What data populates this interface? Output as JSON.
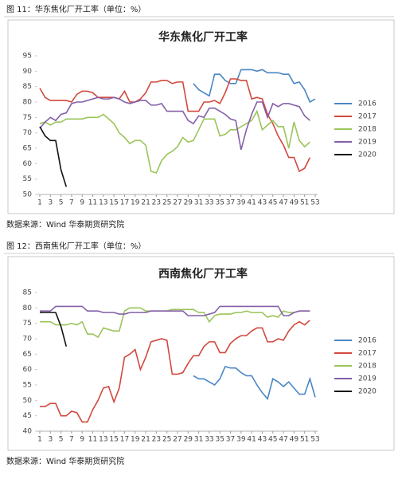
{
  "chart_data": [
    {
      "type": "line",
      "caption": "图 11：华东焦化厂开工率（单位：%）",
      "title": "华东焦化厂开工率",
      "source": "数据来源：Wind 华泰期货研究院",
      "x": [
        1,
        2,
        3,
        4,
        5,
        6,
        7,
        8,
        9,
        10,
        11,
        12,
        13,
        14,
        15,
        16,
        17,
        18,
        19,
        20,
        21,
        22,
        23,
        24,
        25,
        26,
        27,
        28,
        29,
        30,
        31,
        32,
        33,
        34,
        35,
        36,
        37,
        38,
        39,
        40,
        41,
        42,
        43,
        44,
        45,
        46,
        47,
        48,
        49,
        50,
        51,
        52,
        53
      ],
      "xlim": [
        1,
        53
      ],
      "xticks": [
        1,
        3,
        5,
        7,
        9,
        11,
        13,
        15,
        17,
        19,
        21,
        23,
        25,
        27,
        29,
        31,
        33,
        35,
        37,
        39,
        41,
        43,
        45,
        47,
        49,
        51,
        53
      ],
      "ylim": [
        50,
        95
      ],
      "yticks": [
        50,
        55,
        60,
        65,
        70,
        75,
        80,
        85,
        90,
        95
      ],
      "legend": "right",
      "series": [
        {
          "name": "2016",
          "color": "#4a86c5",
          "values": [
            null,
            null,
            null,
            null,
            null,
            null,
            null,
            null,
            null,
            null,
            null,
            null,
            null,
            null,
            null,
            null,
            null,
            null,
            null,
            null,
            null,
            null,
            null,
            null,
            null,
            null,
            null,
            null,
            null,
            86,
            84,
            83,
            82,
            89,
            89,
            87,
            86,
            86,
            90.5,
            90.5,
            90.5,
            90,
            90.5,
            89.5,
            89.5,
            89.5,
            89,
            89,
            86,
            86.5,
            84,
            80,
            81
          ]
        },
        {
          "name": "2017",
          "color": "#d2483e",
          "values": [
            84.5,
            81.5,
            80.5,
            80.5,
            80.5,
            80.5,
            80,
            82.5,
            83.5,
            83.5,
            83,
            81.5,
            81.5,
            81.5,
            81.5,
            81,
            83.5,
            80,
            80,
            81,
            83,
            86.5,
            86.5,
            87,
            87,
            86,
            86.5,
            86.5,
            77,
            77,
            77,
            80,
            80,
            80.5,
            79.5,
            83,
            87.5,
            87.5,
            87,
            87,
            81,
            81.5,
            81,
            76,
            73,
            69,
            66,
            62,
            62,
            57.5,
            58.5,
            62,
            null
          ]
        },
        {
          "name": "2018",
          "color": "#9bc45a",
          "values": [
            73,
            73.5,
            72.5,
            73.5,
            73.5,
            74.5,
            74.5,
            74.5,
            74.5,
            75,
            75,
            75,
            76,
            74.5,
            73,
            70,
            68.5,
            66.5,
            67.5,
            67.5,
            66,
            57.5,
            57,
            61,
            63,
            64,
            65.5,
            68.5,
            67,
            67.5,
            71,
            74.5,
            74.5,
            74.5,
            69,
            69.5,
            71,
            71,
            72,
            73,
            74,
            77,
            71,
            72.5,
            74,
            72,
            72,
            65,
            73.5,
            67.5,
            65.5,
            67,
            null
          ]
        },
        {
          "name": "2019",
          "color": "#8460a8",
          "values": [
            71.5,
            73.5,
            75,
            74,
            76,
            76.5,
            79.5,
            80,
            80,
            80.5,
            81,
            81.5,
            81,
            81,
            81.5,
            81,
            80,
            79.5,
            80,
            80.5,
            80.5,
            79,
            79,
            79.5,
            77,
            77,
            77,
            77,
            74,
            73,
            75.5,
            75,
            78,
            78,
            77,
            76,
            74.5,
            74,
            64.5,
            71,
            76,
            80,
            80,
            75,
            79.5,
            78.5,
            79.5,
            79.5,
            79,
            78.5,
            75.5,
            74,
            null
          ]
        },
        {
          "name": "2020",
          "color": "#111111",
          "values": [
            72,
            69,
            67.5,
            67.5,
            58,
            52.5,
            null,
            null,
            null,
            null,
            null,
            null,
            null,
            null,
            null,
            null,
            null,
            null,
            null,
            null,
            null,
            null,
            null,
            null,
            null,
            null,
            null,
            null,
            null,
            null,
            null,
            null,
            null,
            null,
            null,
            null,
            null,
            null,
            null,
            null,
            null,
            null,
            null,
            null,
            null,
            null,
            null,
            null,
            null,
            null,
            null,
            null,
            null
          ]
        }
      ]
    },
    {
      "type": "line",
      "caption": "图 12：西南焦化厂开工率（单位：%）",
      "title": "西南焦化厂开工率",
      "source": "数据来源：Wind 华泰期货研究院",
      "x": [
        1,
        2,
        3,
        4,
        5,
        6,
        7,
        8,
        9,
        10,
        11,
        12,
        13,
        14,
        15,
        16,
        17,
        18,
        19,
        20,
        21,
        22,
        23,
        24,
        25,
        26,
        27,
        28,
        29,
        30,
        31,
        32,
        33,
        34,
        35,
        36,
        37,
        38,
        39,
        40,
        41,
        42,
        43,
        44,
        45,
        46,
        47,
        48,
        49,
        50,
        51,
        52,
        53
      ],
      "xlim": [
        1,
        53
      ],
      "xticks": [
        1,
        3,
        5,
        7,
        9,
        11,
        13,
        15,
        17,
        19,
        21,
        23,
        25,
        27,
        29,
        31,
        33,
        35,
        37,
        39,
        41,
        43,
        45,
        47,
        49,
        51,
        53
      ],
      "ylim": [
        40,
        85
      ],
      "yticks": [
        40,
        45,
        50,
        55,
        60,
        65,
        70,
        75,
        80,
        85
      ],
      "legend": "right",
      "series": [
        {
          "name": "2016",
          "color": "#4a86c5",
          "values": [
            null,
            null,
            null,
            null,
            null,
            null,
            null,
            null,
            null,
            null,
            null,
            null,
            null,
            null,
            null,
            null,
            null,
            null,
            null,
            null,
            null,
            null,
            null,
            null,
            null,
            null,
            null,
            null,
            null,
            58,
            57,
            57,
            56,
            55,
            57,
            61,
            60.5,
            60.5,
            59,
            58,
            58,
            55,
            52.5,
            50.5,
            57,
            56,
            54.5,
            56,
            54,
            52,
            52,
            57,
            51
          ]
        },
        {
          "name": "2017",
          "color": "#d2483e",
          "values": [
            48,
            48,
            49,
            49,
            45,
            45,
            46.5,
            46,
            43,
            43,
            47,
            50,
            54,
            54.5,
            49.5,
            54,
            64,
            65,
            66.5,
            60,
            64,
            69,
            69.5,
            70,
            69.5,
            58.5,
            58.5,
            59,
            62,
            64.5,
            64.5,
            67.5,
            69,
            69,
            65.5,
            65.5,
            68.5,
            70,
            71,
            71,
            72.5,
            73.5,
            73.5,
            69,
            69,
            70,
            69.5,
            72.5,
            74.5,
            75.5,
            74.5,
            76,
            null
          ]
        },
        {
          "name": "2018",
          "color": "#9bc45a",
          "values": [
            75.5,
            75.5,
            75.5,
            74.5,
            74.5,
            74.5,
            75,
            74.5,
            75.5,
            71.5,
            71.5,
            70.5,
            73.5,
            73,
            72.5,
            72.5,
            79,
            80,
            80,
            80,
            79,
            79,
            79,
            79,
            79,
            79.5,
            79.5,
            79.5,
            79.5,
            79.5,
            78.5,
            78.5,
            75.5,
            77.5,
            78,
            78,
            78,
            78.5,
            78.5,
            79,
            78.5,
            78.5,
            78.5,
            77,
            77.5,
            77,
            79,
            78.5,
            78.5,
            79,
            79,
            79,
            null
          ]
        },
        {
          "name": "2019",
          "color": "#8460a8",
          "values": [
            79,
            79,
            79,
            80.5,
            80.5,
            80.5,
            80.5,
            80.5,
            80.5,
            79,
            79,
            79,
            78.5,
            78.5,
            78.5,
            78,
            78,
            78.5,
            78.5,
            78.5,
            78.5,
            79,
            79,
            79,
            79,
            79,
            79,
            79,
            77.5,
            77.5,
            77.5,
            77.5,
            78,
            78.5,
            80.5,
            80.5,
            80.5,
            80.5,
            80.5,
            80.5,
            80.5,
            80.5,
            80.5,
            80.5,
            80.5,
            80.5,
            77.5,
            77.5,
            78.5,
            79,
            79,
            79,
            null
          ]
        },
        {
          "name": "2020",
          "color": "#111111",
          "values": [
            78.5,
            78.5,
            78.5,
            78.5,
            74,
            67.5,
            null,
            null,
            null,
            null,
            null,
            null,
            null,
            null,
            null,
            null,
            null,
            null,
            null,
            null,
            null,
            null,
            null,
            null,
            null,
            null,
            null,
            null,
            null,
            null,
            null,
            null,
            null,
            null,
            null,
            null,
            null,
            null,
            null,
            null,
            null,
            null,
            null,
            null,
            null,
            null,
            null,
            null,
            null,
            null,
            null,
            null,
            null
          ]
        }
      ]
    }
  ]
}
